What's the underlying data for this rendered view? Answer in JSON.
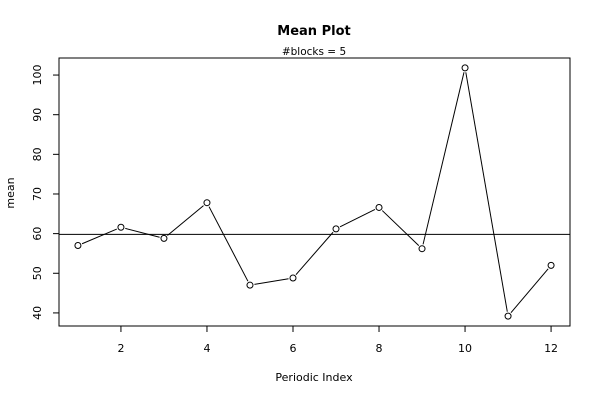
{
  "chart_data": {
    "type": "line",
    "title": "Mean Plot",
    "subtitle": "#blocks =  5",
    "xlabel": "Periodic Index",
    "ylabel": "mean",
    "x": [
      1,
      2,
      3,
      4,
      5,
      6,
      7,
      8,
      9,
      10,
      11,
      12
    ],
    "y": [
      57.0,
      61.6,
      58.8,
      67.8,
      47.0,
      48.8,
      61.2,
      66.6,
      56.2,
      101.8,
      39.2,
      52.0
    ],
    "reference_line": 59.8,
    "xlim": [
      0.56,
      12.44
    ],
    "ylim": [
      36.7,
      104.3
    ],
    "xticks": [
      2,
      4,
      6,
      8,
      10,
      12
    ],
    "yticks": [
      40,
      50,
      60,
      70,
      80,
      90,
      100
    ],
    "grid": false,
    "markers": "open-circle",
    "colors": {
      "line": "#000000",
      "marker_fill": "#ffffff"
    }
  }
}
